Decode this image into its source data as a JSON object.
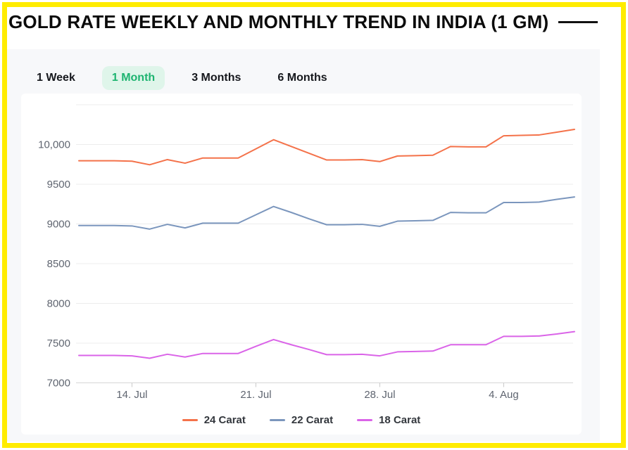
{
  "title": "GOLD RATE WEEKLY AND MONTHLY TREND IN INDIA (1 GM)",
  "tabs": [
    {
      "label": "1 Week",
      "active": false
    },
    {
      "label": "1 Month",
      "active": true
    },
    {
      "label": "3 Months",
      "active": false
    },
    {
      "label": "6 Months",
      "active": false
    }
  ],
  "colors": {
    "frame_yellow": "#FFEC00",
    "panel_bg": "#f7f8fa",
    "card_bg": "#ffffff",
    "active_tab_text": "#1DB470",
    "active_tab_bg": "#DFF5EA",
    "gridline": "#ececec",
    "axis_line": "#d6d6d6",
    "tick_label": "#5f6570",
    "series_24_carat": "#F4724A",
    "series_22_carat": "#7B96BD",
    "series_18_carat": "#DA64E8"
  },
  "chart_data": {
    "type": "line",
    "title": "Gold rate per 1 gm, 1 month trend",
    "xlabel": "",
    "ylabel": "",
    "grid": true,
    "legend_position": "bottom",
    "ylim": [
      7000,
      10500
    ],
    "y_ticks": [
      7000,
      7500,
      8000,
      8500,
      9000,
      9500,
      10000
    ],
    "y_tick_labels": [
      "7000",
      "7500",
      "8000",
      "8500",
      "9000",
      "9500",
      "10,000"
    ],
    "x": [
      "11 Jul",
      "12 Jul",
      "13 Jul",
      "14 Jul",
      "15 Jul",
      "16 Jul",
      "17 Jul",
      "18 Jul",
      "19 Jul",
      "20 Jul",
      "21 Jul",
      "22 Jul",
      "23 Jul",
      "24 Jul",
      "25 Jul",
      "26 Jul",
      "27 Jul",
      "28 Jul",
      "29 Jul",
      "30 Jul",
      "31 Jul",
      "1 Aug",
      "2 Aug",
      "3 Aug",
      "4 Aug",
      "5 Aug",
      "6 Aug",
      "7 Aug",
      "8 Aug"
    ],
    "x_tick_labels": [
      {
        "label": "14. Jul",
        "index": 3
      },
      {
        "label": "21. Jul",
        "index": 10
      },
      {
        "label": "28. Jul",
        "index": 17
      },
      {
        "label": "4. Aug",
        "index": 24
      }
    ],
    "series": [
      {
        "name": "24 Carat",
        "color": "#F4724A",
        "values": [
          9795,
          9795,
          9795,
          9790,
          9745,
          9810,
          9765,
          9830,
          9830,
          9830,
          9945,
          10060,
          9975,
          9890,
          9805,
          9805,
          9810,
          9785,
          9855,
          9860,
          9865,
          9975,
          9970,
          9970,
          10110,
          10115,
          10120,
          10155,
          10190
        ]
      },
      {
        "name": "22 Carat",
        "color": "#7B96BD",
        "values": [
          8980,
          8980,
          8980,
          8975,
          8935,
          8995,
          8950,
          9010,
          9010,
          9010,
          9115,
          9220,
          9145,
          9065,
          8990,
          8990,
          8995,
          8970,
          9035,
          9040,
          9045,
          9145,
          9140,
          9140,
          9270,
          9270,
          9275,
          9310,
          9340
        ]
      },
      {
        "name": "18 Carat",
        "color": "#DA64E8",
        "values": [
          7345,
          7345,
          7345,
          7340,
          7310,
          7360,
          7325,
          7370,
          7370,
          7370,
          7460,
          7545,
          7480,
          7420,
          7355,
          7355,
          7360,
          7340,
          7390,
          7395,
          7400,
          7480,
          7480,
          7480,
          7585,
          7585,
          7590,
          7615,
          7645
        ]
      }
    ]
  }
}
